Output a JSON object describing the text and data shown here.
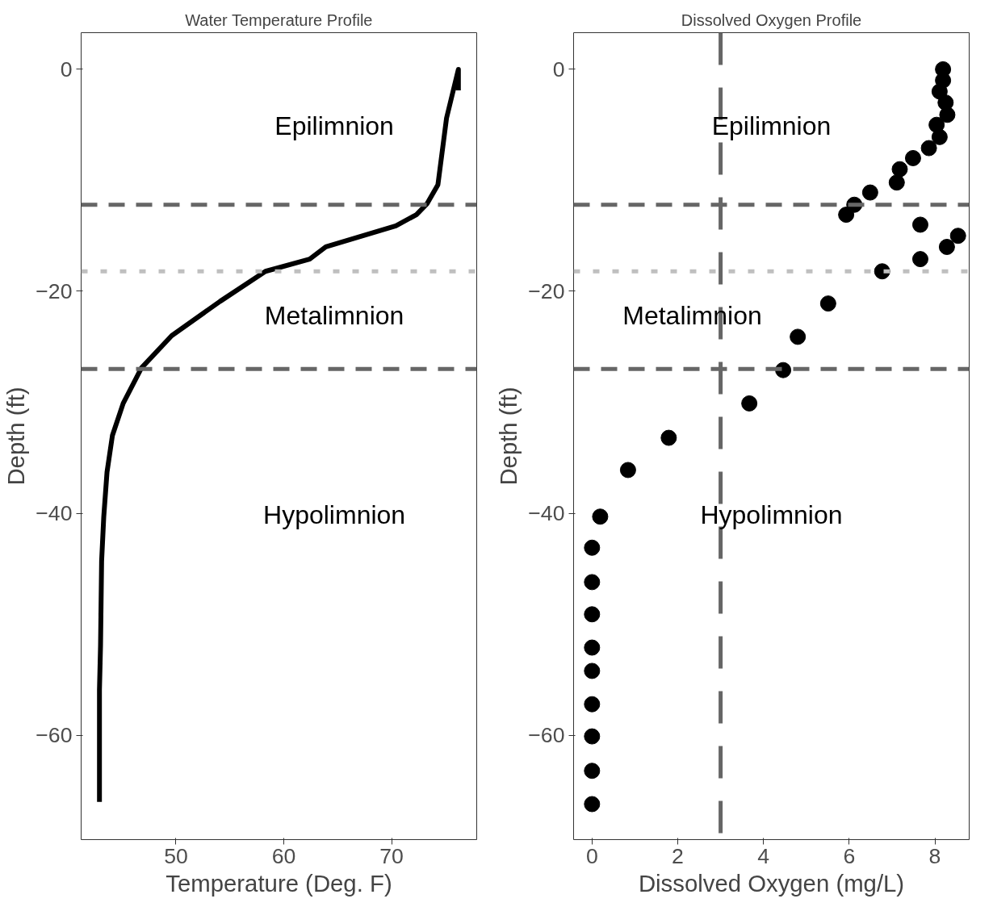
{
  "chart_data": [
    {
      "type": "line",
      "title": "Water Temperature Profile",
      "xlabel": "Temperature (Deg. F)",
      "ylabel": "Depth (ft)",
      "grid": false,
      "line_style": "solid",
      "marker": "none",
      "xlim": [
        41.2,
        77.9
      ],
      "ylim": [
        -69.4,
        3.3
      ],
      "xticks": [
        50,
        60,
        70
      ],
      "yticks": [
        0,
        -20,
        -40,
        -60
      ],
      "series": [
        {
          "color": "#000000",
          "x": [
            76.2,
            76.2,
            75.1,
            74.3,
            73.3,
            72.3,
            70.4,
            63.9,
            62.4,
            58.3,
            54.1,
            49.6,
            46.8,
            45.1,
            44.1,
            43.6,
            43.3,
            43.1,
            43.0,
            42.9,
            42.9
          ],
          "values": [
            -1.9,
            0,
            -4.4,
            -10.4,
            -12.1,
            -13.1,
            -14.1,
            -16.0,
            -17.1,
            -18.2,
            -20.9,
            -24.0,
            -26.9,
            -30.1,
            -33.0,
            -36.3,
            -40.3,
            -44.3,
            -51.9,
            -55.9,
            -66.0
          ]
        }
      ],
      "ref_lines": [
        {
          "axis": "y",
          "value": -12.2,
          "color": "#666666",
          "line_style": "dashed"
        },
        {
          "axis": "y",
          "value": -18.2,
          "color": "#bfbfbf",
          "line_style": "dotted"
        },
        {
          "axis": "y",
          "value": -27.0,
          "color": "#666666",
          "line_style": "dashed"
        }
      ],
      "annotations": [
        "Epilimnion",
        "Metalimnion",
        "Hypolimnion"
      ]
    },
    {
      "type": "scatter",
      "title": "Dissolved Oxygen Profile",
      "xlabel": "Dissolved Oxygen (mg/L)",
      "ylabel": "Depth (ft)",
      "grid": false,
      "marker": "circle",
      "xlim": [
        -0.43,
        8.8
      ],
      "ylim": [
        -69.4,
        3.3
      ],
      "xticks": [
        0,
        2,
        4,
        6,
        8
      ],
      "yticks": [
        0,
        -20,
        -40,
        -60
      ],
      "series": [
        {
          "color": "#000000",
          "x": [
            8.19,
            8.19,
            8.11,
            8.25,
            8.29,
            8.04,
            8.11,
            7.86,
            7.49,
            7.18,
            7.11,
            6.49,
            6.12,
            5.93,
            7.66,
            8.54,
            8.28,
            7.66,
            6.77,
            5.51,
            4.8,
            4.46,
            3.67,
            1.79,
            0.84,
            0.19,
            0,
            0,
            0,
            0,
            0,
            0,
            0,
            0,
            0
          ],
          "values": [
            0,
            -1.0,
            -2.0,
            -3.0,
            -4.1,
            -5.0,
            -6.1,
            -7.1,
            -8.0,
            -9.0,
            -10.2,
            -11.1,
            -12.2,
            -13.1,
            -14.0,
            -15.0,
            -16.0,
            -17.1,
            -18.2,
            -21.1,
            -24.1,
            -27.1,
            -30.1,
            -33.2,
            -36.1,
            -40.3,
            -43.1,
            -46.2,
            -49.1,
            -52.1,
            -54.2,
            -57.2,
            -60.1,
            -63.2,
            -66.2
          ]
        }
      ],
      "ref_lines": [
        {
          "axis": "y",
          "value": -12.2,
          "color": "#666666",
          "line_style": "dashed"
        },
        {
          "axis": "y",
          "value": -18.2,
          "color": "#bfbfbf",
          "line_style": "dotted"
        },
        {
          "axis": "y",
          "value": -27.0,
          "color": "#666666",
          "line_style": "dashed"
        },
        {
          "axis": "x",
          "value": 3.0,
          "color": "#666666",
          "line_style": "longdash"
        }
      ],
      "annotations": [
        "Epilimnion",
        "Metalimnion",
        "Hypolimnion"
      ]
    }
  ]
}
